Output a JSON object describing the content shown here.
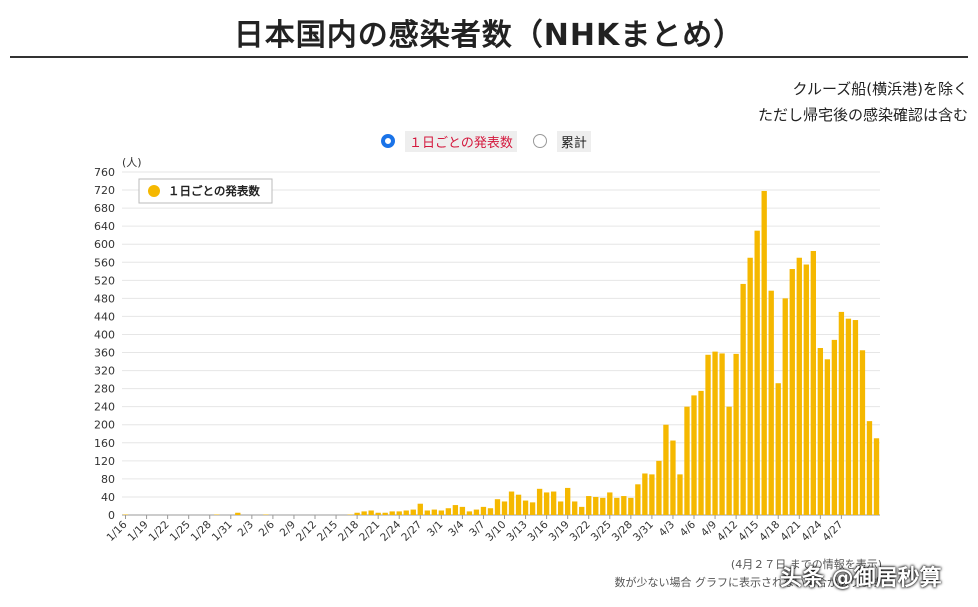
{
  "title": "日本国内の感染者数（NHKまとめ）",
  "notes": [
    "クルーズ船(横浜港)を除く",
    "ただし帰宅後の感染確認は含む"
  ],
  "options": [
    {
      "label": "１日ごとの発表数",
      "selected": true
    },
    {
      "label": "累計",
      "selected": false
    }
  ],
  "footnotes": [
    "(4月２７日 までの情報を表示)",
    "数が少ない場合 グラフに表示されない場合があります"
  ],
  "watermark": "头条 @御居秒算",
  "chart_data": {
    "type": "bar",
    "ylabel": "(人)",
    "ylim": [
      0,
      760
    ],
    "yticks": [
      0,
      40,
      80,
      120,
      160,
      200,
      240,
      280,
      320,
      360,
      400,
      440,
      480,
      520,
      560,
      600,
      640,
      680,
      720,
      760
    ],
    "grid": true,
    "legend": {
      "position": "top-left",
      "entries": [
        "１日ごとの発表数"
      ]
    },
    "color": "#f5b800",
    "xtick_labels": [
      "1/16",
      "1/19",
      "1/22",
      "1/25",
      "1/28",
      "1/31",
      "2/3",
      "2/6",
      "2/9",
      "2/12",
      "2/15",
      "2/18",
      "2/21",
      "2/24",
      "2/27",
      "3/1",
      "3/4",
      "3/7",
      "3/10",
      "3/13",
      "3/16",
      "3/19",
      "3/22",
      "3/25",
      "3/28",
      "3/31",
      "4/3",
      "4/6",
      "4/9",
      "4/12",
      "4/15",
      "4/18",
      "4/21",
      "4/24",
      "4/27"
    ],
    "series": [
      {
        "name": "１日ごとの発表数",
        "values": [
          1,
          0,
          0,
          0,
          0,
          0,
          0,
          0,
          0,
          0,
          0,
          0,
          0,
          1,
          0,
          0,
          5,
          0,
          0,
          0,
          1,
          0,
          0,
          0,
          0,
          0,
          0,
          0,
          0,
          0,
          0,
          0,
          1,
          5,
          8,
          10,
          5,
          5,
          8,
          8,
          10,
          12,
          25,
          10,
          12,
          10,
          15,
          22,
          18,
          8,
          12,
          18,
          15,
          35,
          30,
          52,
          45,
          32,
          28,
          58,
          50,
          52,
          30,
          60,
          30,
          18,
          42,
          40,
          38,
          50,
          38,
          42,
          38,
          68,
          92,
          90,
          120,
          200,
          165,
          90,
          240,
          265,
          275,
          355,
          362,
          358,
          240,
          357,
          512,
          570,
          630,
          718,
          497,
          292,
          480,
          545,
          570,
          555,
          585,
          370,
          345,
          388,
          450,
          435,
          432,
          365,
          208,
          170
        ]
      }
    ]
  }
}
